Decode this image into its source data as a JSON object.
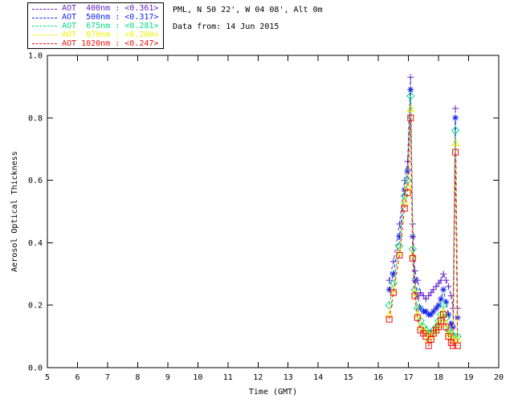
{
  "header": {
    "location_line": "PML, N 50 22', W 04 08', Alt 0m",
    "date_line": "Data from: 14 Jun 2015"
  },
  "legend": {
    "entries": [
      {
        "label": "AOT  400nm : <0.361>",
        "color": "#6622CC"
      },
      {
        "label": "AOT  500nm : <0.317>",
        "color": "#1122EE"
      },
      {
        "label": "AOT  675nm : <0.281>",
        "color": "#00DC82"
      },
      {
        "label": "AOT  870nm : <0.260>",
        "color": "#F0F000"
      },
      {
        "label": "AOT 1020nm : <0.247>",
        "color": "#EE1111"
      }
    ]
  },
  "chart_data": {
    "type": "line",
    "title": "",
    "xlabel": "Time (GMT)",
    "ylabel": "Aerosol Optical Thickness",
    "xlim": [
      5,
      20
    ],
    "ylim": [
      0.0,
      1.0
    ],
    "xticks": [
      5,
      6,
      7,
      8,
      9,
      10,
      11,
      12,
      13,
      14,
      15,
      16,
      17,
      18,
      19,
      20
    ],
    "yticks": [
      0.0,
      0.2,
      0.4,
      0.6,
      0.8,
      1.0
    ],
    "grid": false,
    "legend_position": "top-left",
    "line_style": "dashed",
    "x": [
      16.36,
      16.5,
      16.7,
      16.87,
      16.97,
      17.07,
      17.14,
      17.21,
      17.3,
      17.4,
      17.5,
      17.58,
      17.67,
      17.75,
      17.83,
      17.92,
      18.0,
      18.08,
      18.16,
      18.25,
      18.33,
      18.42,
      18.48,
      18.56,
      18.63
    ],
    "series": [
      {
        "name": "AOT 400nm",
        "mean_label": "<0.361>",
        "color": "#6622CC",
        "marker": "plus",
        "values": [
          0.28,
          0.34,
          0.46,
          0.6,
          0.66,
          0.93,
          0.46,
          0.31,
          0.28,
          0.24,
          0.23,
          0.22,
          0.23,
          0.24,
          0.25,
          0.26,
          0.27,
          0.28,
          0.3,
          0.28,
          0.26,
          0.23,
          0.19,
          0.83,
          0.19
        ]
      },
      {
        "name": "AOT 500nm",
        "mean_label": "<0.317>",
        "color": "#1122EE",
        "marker": "asterisk",
        "values": [
          0.25,
          0.3,
          0.42,
          0.57,
          0.63,
          0.89,
          0.42,
          0.28,
          0.23,
          0.19,
          0.18,
          0.18,
          0.17,
          0.17,
          0.18,
          0.19,
          0.2,
          0.22,
          0.25,
          0.21,
          0.17,
          0.14,
          0.13,
          0.8,
          0.16
        ]
      },
      {
        "name": "AOT 675nm",
        "mean_label": "<0.281>",
        "color": "#00DC82",
        "marker": "diamond",
        "values": [
          0.2,
          0.27,
          0.39,
          0.55,
          0.6,
          0.87,
          0.38,
          0.25,
          0.19,
          0.15,
          0.13,
          0.12,
          0.11,
          0.11,
          0.12,
          0.13,
          0.15,
          0.17,
          0.2,
          0.16,
          0.12,
          0.11,
          0.1,
          0.76,
          0.1
        ]
      },
      {
        "name": "AOT 870nm",
        "mean_label": "<0.260>",
        "color": "#F0F000",
        "marker": "triangle",
        "values": [
          0.17,
          0.25,
          0.37,
          0.53,
          0.58,
          0.83,
          0.36,
          0.24,
          0.17,
          0.13,
          0.12,
          0.11,
          0.09,
          0.1,
          0.11,
          0.12,
          0.14,
          0.16,
          0.18,
          0.14,
          0.11,
          0.1,
          0.09,
          0.72,
          0.09
        ]
      },
      {
        "name": "AOT 1020nm",
        "mean_label": "<0.247>",
        "color": "#EE1111",
        "marker": "square",
        "values": [
          0.155,
          0.24,
          0.36,
          0.51,
          0.56,
          0.8,
          0.35,
          0.23,
          0.16,
          0.12,
          0.11,
          0.1,
          0.07,
          0.09,
          0.11,
          0.12,
          0.13,
          0.15,
          0.17,
          0.13,
          0.1,
          0.08,
          0.07,
          0.69,
          0.07
        ]
      }
    ]
  }
}
